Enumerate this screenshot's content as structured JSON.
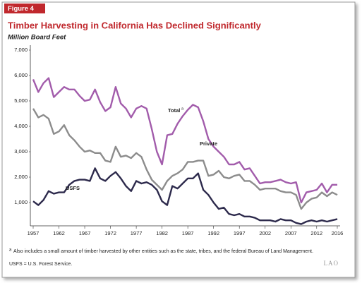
{
  "chart_data": {
    "type": "line",
    "figure_label": "Figure 4",
    "title": "Timber Harvesting in California Has Declined Significantly",
    "subtitle": "Million Board Feet",
    "x": [
      1957,
      1958,
      1959,
      1960,
      1961,
      1962,
      1963,
      1964,
      1965,
      1966,
      1967,
      1968,
      1969,
      1970,
      1971,
      1972,
      1973,
      1974,
      1975,
      1976,
      1977,
      1978,
      1979,
      1980,
      1981,
      1982,
      1983,
      1984,
      1985,
      1986,
      1987,
      1988,
      1989,
      1990,
      1991,
      1992,
      1993,
      1994,
      1995,
      1996,
      1997,
      1998,
      1999,
      2000,
      2001,
      2002,
      2003,
      2004,
      2005,
      2006,
      2007,
      2008,
      2009,
      2010,
      2011,
      2012,
      2013,
      2014,
      2015,
      2016
    ],
    "xlim": [
      1957,
      2016
    ],
    "xticks": [
      1957,
      1962,
      1967,
      1972,
      1977,
      1982,
      1987,
      1992,
      1997,
      2002,
      2007,
      2012,
      2016
    ],
    "ylim": [
      0,
      7000
    ],
    "yticks": [
      {
        "value": 1000,
        "label": "1,000"
      },
      {
        "value": 2000,
        "label": "2,000"
      },
      {
        "value": 3000,
        "label": "3,000"
      },
      {
        "value": 4000,
        "label": "4,000"
      },
      {
        "value": 5000,
        "label": "5,000"
      },
      {
        "value": 6000,
        "label": "6,000"
      },
      {
        "value": 7000,
        "label": "7,000"
      }
    ],
    "grid": false,
    "series": [
      {
        "name": "Total",
        "footnote_marker": "a",
        "color": "#a25cab",
        "values": [
          5850,
          5350,
          5700,
          5900,
          5150,
          5350,
          5550,
          5450,
          5450,
          5200,
          5000,
          5050,
          5450,
          4950,
          4600,
          4750,
          5550,
          4900,
          4700,
          4350,
          4700,
          4800,
          4700,
          3900,
          3000,
          2500,
          3650,
          3700,
          4100,
          4400,
          4650,
          4850,
          4750,
          4200,
          3500,
          3200,
          3000,
          2800,
          2500,
          2500,
          2600,
          2300,
          2350,
          2050,
          1750,
          1800,
          1800,
          1850,
          1900,
          1800,
          1750,
          1800,
          1000,
          1400,
          1450,
          1500,
          1750,
          1400,
          1700,
          1700
        ]
      },
      {
        "name": "Private",
        "color": "#8c8c8c",
        "values": [
          4700,
          4350,
          4450,
          4300,
          3700,
          3800,
          4050,
          3650,
          3450,
          3200,
          3000,
          3050,
          2950,
          2950,
          2650,
          2600,
          3200,
          2800,
          2850,
          2750,
          2950,
          2800,
          2300,
          1900,
          1700,
          1500,
          1850,
          2050,
          2150,
          2300,
          2600,
          2600,
          2650,
          2650,
          2050,
          2100,
          2250,
          2000,
          1950,
          2050,
          2100,
          1850,
          1850,
          1700,
          1500,
          1550,
          1550,
          1550,
          1450,
          1400,
          1400,
          1300,
          750,
          1000,
          1150,
          1200,
          1400,
          1250,
          1400,
          1300
        ]
      },
      {
        "name": "USFS",
        "color": "#2d2a4c",
        "values": [
          1050,
          900,
          1100,
          1450,
          1350,
          1400,
          1400,
          1700,
          1850,
          1900,
          1900,
          1850,
          2350,
          1950,
          1850,
          2050,
          2200,
          1950,
          1650,
          1450,
          1850,
          1750,
          1800,
          1700,
          1500,
          1050,
          900,
          1650,
          1550,
          1750,
          1950,
          1950,
          2150,
          1500,
          1300,
          1000,
          750,
          800,
          550,
          500,
          550,
          450,
          450,
          400,
          300,
          300,
          300,
          250,
          350,
          300,
          300,
          200,
          150,
          250,
          300,
          250,
          300,
          250,
          300,
          350
        ]
      }
    ],
    "footnote": {
      "marker": "a",
      "text": "Also includes a small amount of timber harvested by other entities such as the state, tribes, and the federal Bureau of Land Management."
    },
    "note": "USFS = U.S. Forest Service.",
    "logo": "LAO"
  }
}
